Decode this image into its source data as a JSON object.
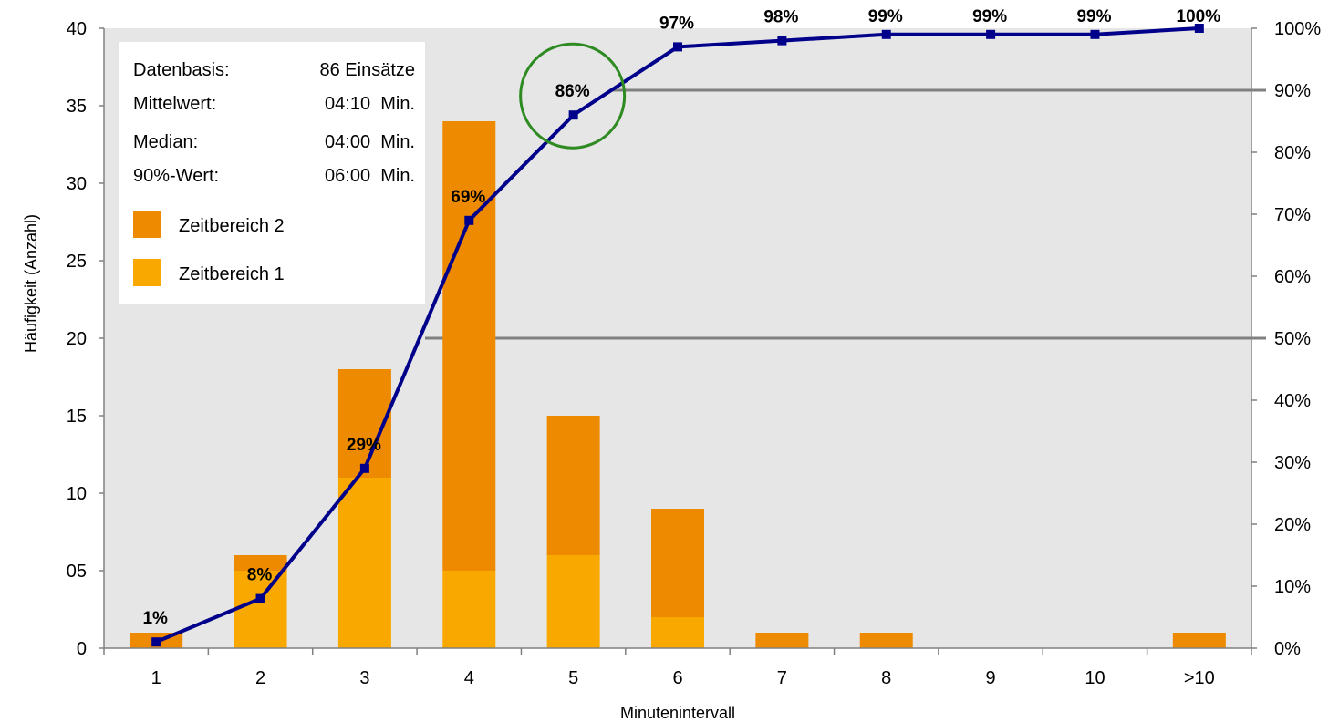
{
  "chart_data": {
    "type": "bar",
    "xlabel": "Minutenintervall",
    "ylabel": "Häufigkeit  (Anzahl)",
    "categories": [
      "1",
      "2",
      "3",
      "4",
      "5",
      "6",
      "7",
      "8",
      "9",
      "10",
      ">10"
    ],
    "ylim": [
      0,
      40
    ],
    "y_ticks": [
      "0",
      "05",
      "10",
      "15",
      "20",
      "25",
      "30",
      "35",
      "40"
    ],
    "y2lim": [
      0,
      100
    ],
    "y2_ticks": [
      "0%",
      "10%",
      "20%",
      "30%",
      "40%",
      "50%",
      "60%",
      "70%",
      "80%",
      "90%",
      "100%"
    ],
    "stacked": true,
    "series": [
      {
        "name": "Zeitbereich 1",
        "values": [
          0,
          5,
          11,
          5,
          6,
          2,
          0,
          0,
          0,
          0,
          0
        ],
        "color": "#F9A800"
      },
      {
        "name": "Zeitbereich 2",
        "values": [
          1,
          1,
          7,
          29,
          9,
          7,
          1,
          1,
          0,
          0,
          1
        ],
        "color": "#EE8A00"
      }
    ],
    "cumulative": {
      "type": "line",
      "axis": "secondary",
      "values": [
        1,
        8,
        29,
        69,
        86,
        97,
        98,
        99,
        99,
        99,
        100
      ],
      "labels": [
        "1%",
        "8%",
        "29%",
        "69%",
        "86%",
        "97%",
        "98%",
        "99%",
        "99%",
        "99%",
        "100%"
      ],
      "color": "#00008B"
    },
    "reference_lines": [
      {
        "axis": "secondary",
        "value": 50,
        "color": "#808080"
      },
      {
        "axis": "secondary",
        "value": 90,
        "color": "#808080"
      }
    ],
    "highlight": {
      "category": "5",
      "color": "#2E8B22"
    },
    "info_box": {
      "rows": [
        {
          "label": "Datenbasis:",
          "value": "86 Einsätze"
        },
        {
          "label": "Mittelwert:",
          "value": "04:10  Min."
        },
        {
          "label": "Median:",
          "value": "04:00  Min."
        },
        {
          "label": "90%-Wert:",
          "value": "06:00  Min."
        }
      ]
    },
    "legend_placement": "top-left",
    "plot_background": "#E6E6E6",
    "grid": false
  }
}
